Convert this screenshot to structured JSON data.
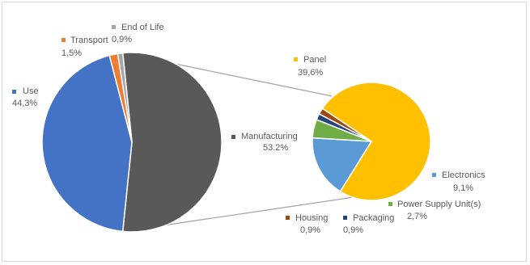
{
  "chart_data": [
    {
      "type": "pie",
      "categories": [
        "Use",
        "Transport",
        "End of Life",
        "Manufacturing"
      ],
      "values": [
        44.3,
        1.5,
        0.9,
        53.2
      ],
      "value_labels": [
        "44,3%",
        "1,5%",
        "0,9%",
        "53.2%"
      ],
      "colors": [
        "#4472c4",
        "#ed7d31",
        "#a5a5a5",
        "#595959"
      ]
    },
    {
      "type": "pie",
      "categories": [
        "Panel",
        "Electronics",
        "Power Supply Unit(s)",
        "Packaging",
        "Housing"
      ],
      "values": [
        39.6,
        9.1,
        2.7,
        0.9,
        0.9
      ],
      "value_labels": [
        "39,6%",
        "9,1%",
        "2,7%",
        "0,9%",
        "0,9%"
      ],
      "colors": [
        "#ffc000",
        "#5b9bd5",
        "#70ad47",
        "#264478",
        "#9e480e"
      ]
    }
  ]
}
